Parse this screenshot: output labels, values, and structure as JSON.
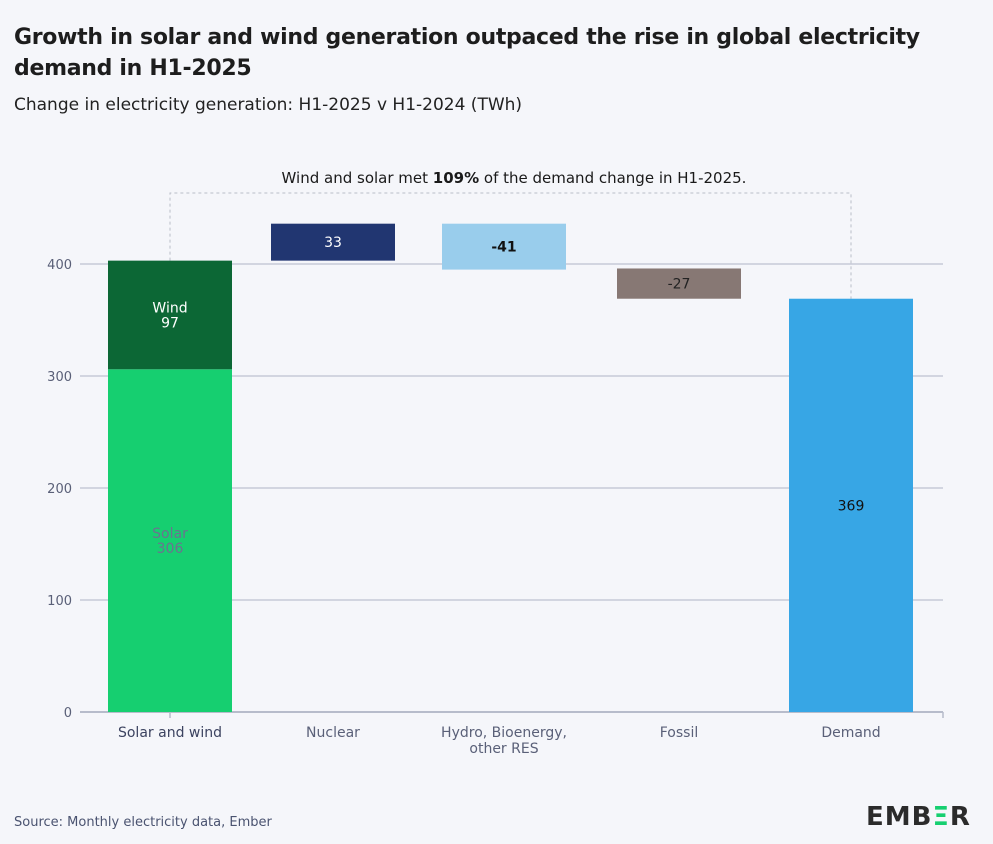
{
  "title": "Growth in solar and wind generation outpaced the rise in global electricity demand in H1-2025",
  "subtitle": "Change in electricity generation: H1-2025 v H1-2024 (TWh)",
  "source": "Source: Monthly electricity data, Ember",
  "logo": "EMBER",
  "chart_data": {
    "type": "waterfall",
    "title": "",
    "xlabel": "",
    "ylabel": "",
    "ylim": [
      0,
      440
    ],
    "yticks": [
      0,
      100,
      200,
      300,
      400
    ],
    "grid": true,
    "categories": [
      "Solar and wind",
      "Nuclear",
      "Hydro, Bioenergy, other RES",
      "Fossil",
      "Demand"
    ],
    "category_lines": [
      [
        "Solar and wind"
      ],
      [
        "Nuclear"
      ],
      [
        "Hydro, Bioenergy,",
        "other RES"
      ],
      [
        "Fossil"
      ],
      [
        "Demand"
      ]
    ],
    "segments": [
      {
        "category": 0,
        "name": "Solar",
        "value": 306,
        "base": 0,
        "color": "#16cf70",
        "label": [
          "Solar",
          "306"
        ],
        "label_color": "#6b7390"
      },
      {
        "category": 0,
        "name": "Wind",
        "value": 97,
        "base": 306,
        "color": "#0c6735",
        "label": [
          "Wind",
          "97"
        ],
        "label_color": "#ffffff"
      },
      {
        "category": 1,
        "name": "Nuclear",
        "value": 33,
        "base": 403,
        "color": "#213671",
        "label": [
          "33"
        ],
        "label_color": "#ffffff"
      },
      {
        "category": 2,
        "name": "Hydro, Bioenergy, other RES",
        "value": -41,
        "base": 436,
        "color": "#99cdec",
        "label": [
          "-41"
        ],
        "label_color": "#111111",
        "bold": true
      },
      {
        "category": 3,
        "name": "Fossil",
        "value": -27,
        "base": 396,
        "color": "#877874",
        "label": [
          "-27"
        ],
        "label_color": "#222222"
      },
      {
        "category": 4,
        "name": "Demand",
        "value": 369,
        "base": 0,
        "color": "#37a6e5",
        "label": [
          "369"
        ],
        "label_color": "#111111"
      }
    ],
    "annotation": {
      "prefix": "Wind and solar met ",
      "bold": "109%",
      "suffix": " of the demand change in H1-2025."
    }
  }
}
